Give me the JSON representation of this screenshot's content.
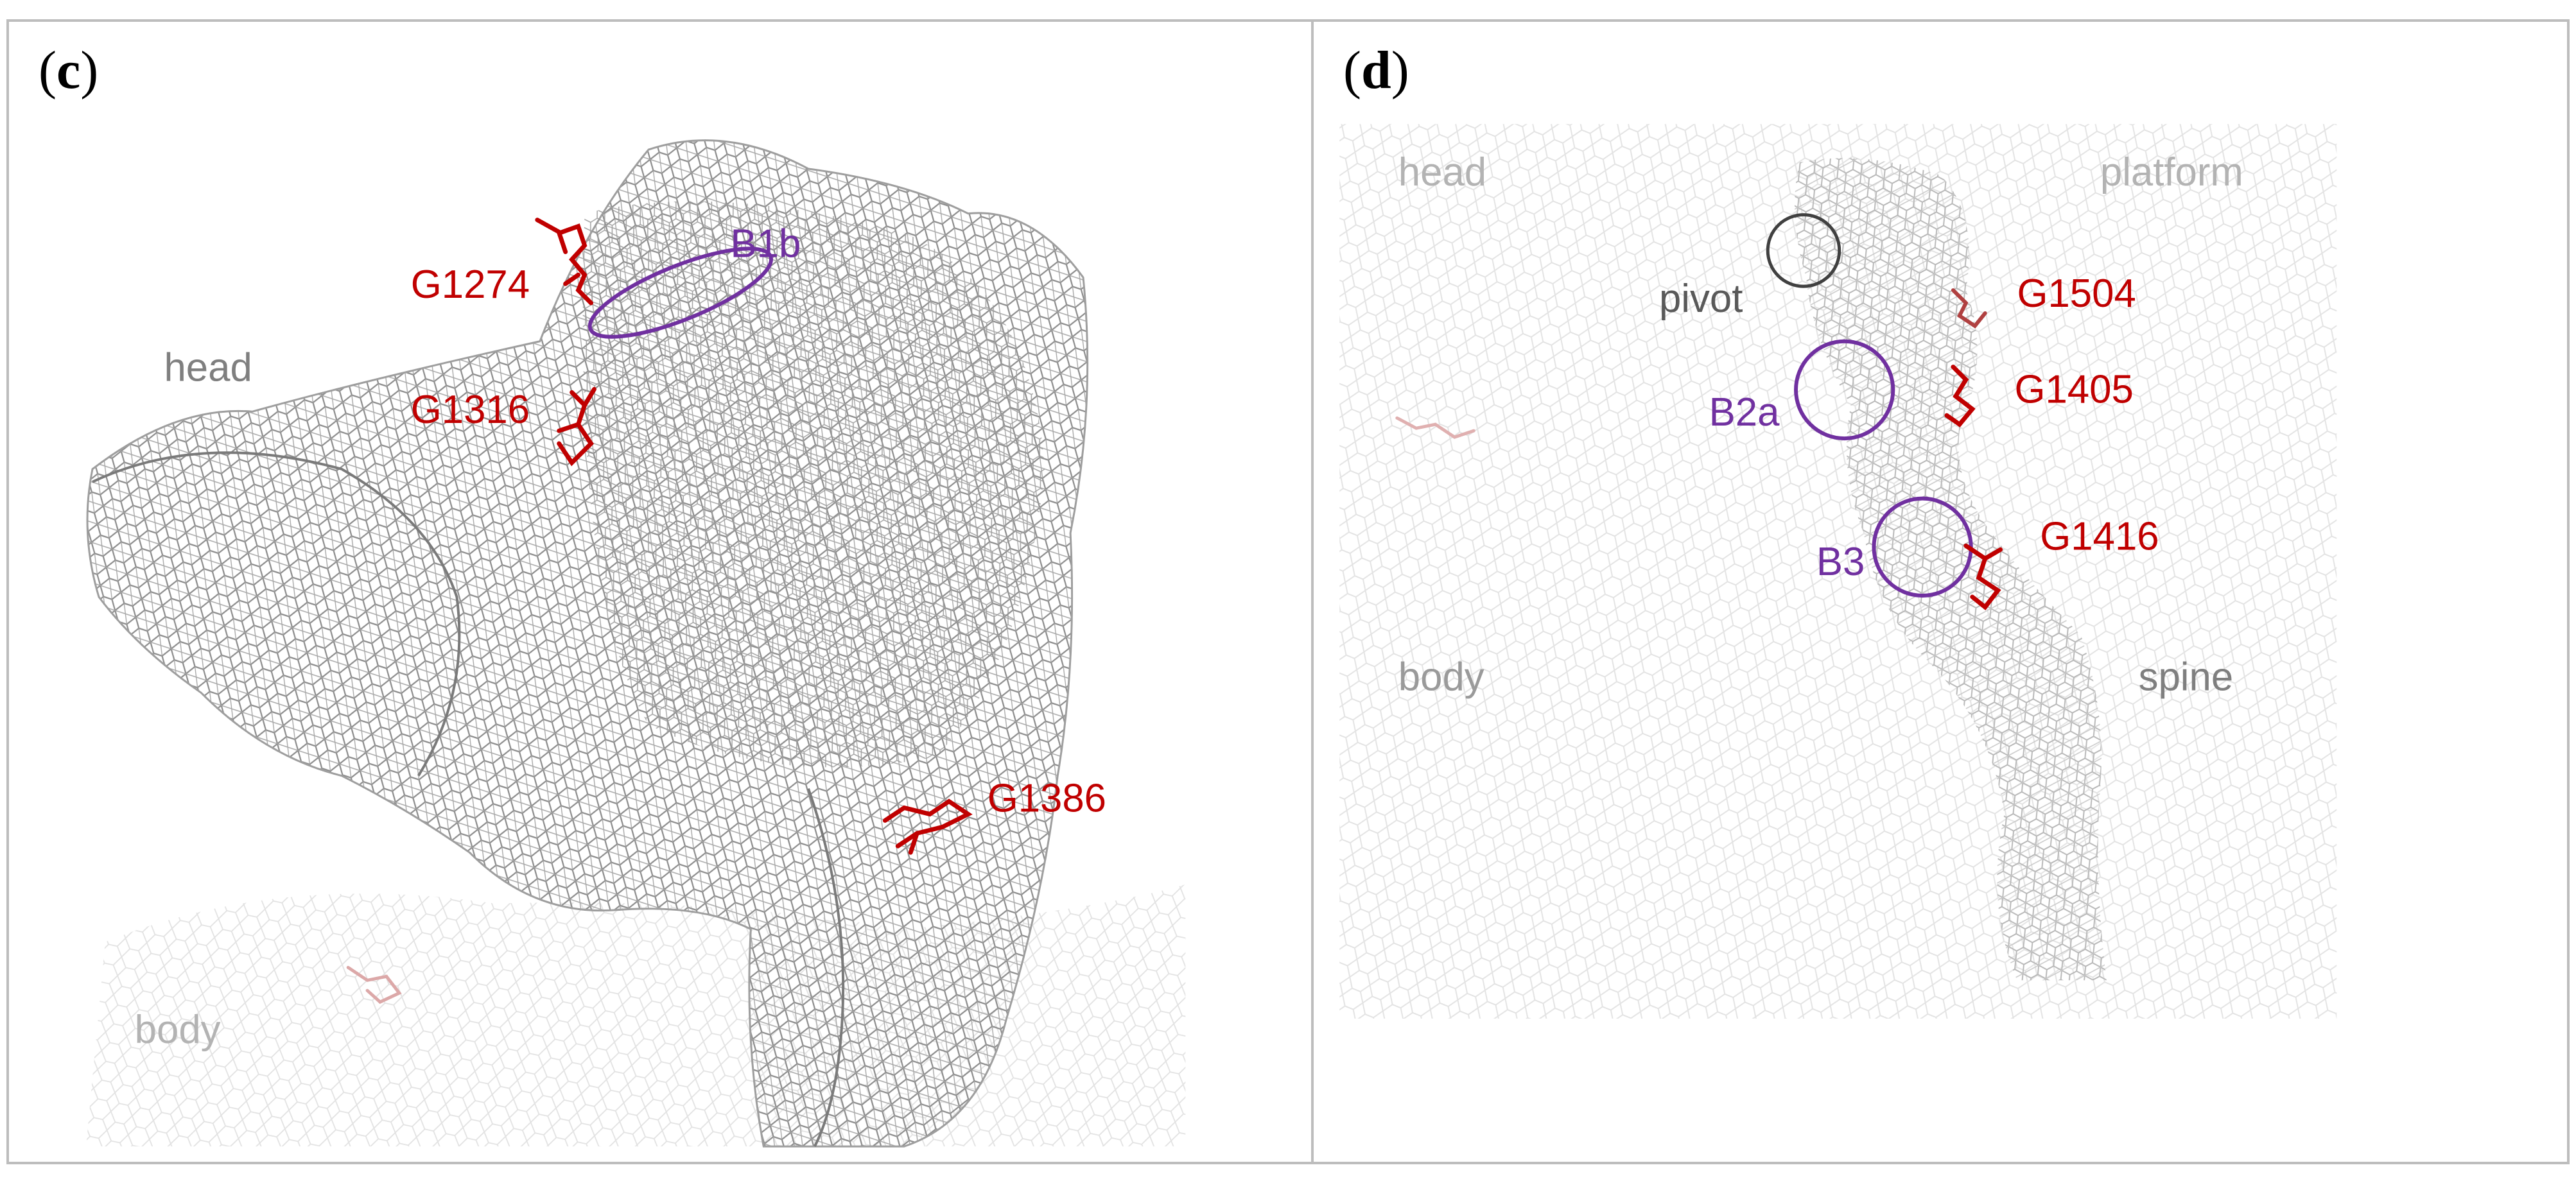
{
  "figure": {
    "panels": [
      {
        "id": "c",
        "label_open": "(",
        "label_letter": "c",
        "label_close": ")",
        "annotations": {
          "B1b": "B1b",
          "G1274": "G1274",
          "G1316": "G1316",
          "G1386": "G1386",
          "head": "head",
          "body": "body"
        }
      },
      {
        "id": "d",
        "label_open": "(",
        "label_letter": "d",
        "label_close": ")",
        "annotations": {
          "head": "head",
          "platform": "platform",
          "pivot": "pivot",
          "G1504": "G1504",
          "B2a": "B2a",
          "G1405": "G1405",
          "B3": "B3",
          "G1416": "G1416",
          "body": "body",
          "spine": "spine"
        }
      }
    ],
    "colors": {
      "residue_red": "#c00000",
      "bridge_purple": "#7030a0",
      "structure_grey": "#8c8c8c",
      "label_grey": "#7f7f7f",
      "faded_label": "#b3b3b3",
      "pivot_circle": "#404040"
    }
  }
}
